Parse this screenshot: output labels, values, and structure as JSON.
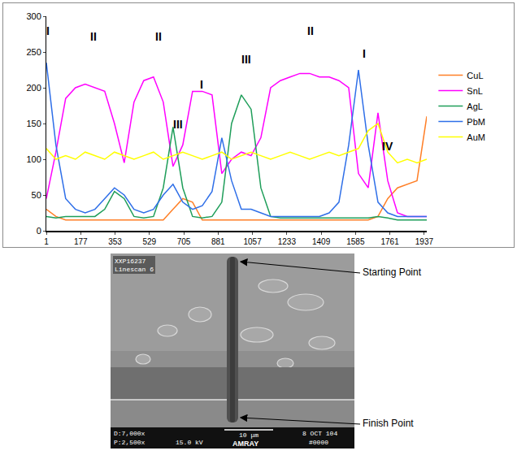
{
  "chart_data": {
    "type": "line",
    "x": [
      1,
      50,
      100,
      150,
      200,
      250,
      300,
      350,
      400,
      450,
      500,
      550,
      600,
      650,
      700,
      750,
      800,
      850,
      900,
      950,
      1000,
      1050,
      1100,
      1150,
      1200,
      1250,
      1300,
      1350,
      1400,
      1450,
      1500,
      1550,
      1600,
      1650,
      1700,
      1750,
      1800,
      1850,
      1900,
      1950
    ],
    "xlim": [
      1,
      1950
    ],
    "xticks": [
      1,
      177,
      353,
      529,
      705,
      881,
      1057,
      1233,
      1409,
      1585,
      1761,
      1937
    ],
    "ylim": [
      0,
      300
    ],
    "yticks": [
      0,
      50,
      100,
      150,
      200,
      250,
      300
    ],
    "grid": false,
    "legend": "right",
    "series": [
      {
        "name": "CuL",
        "color": "#ff7f27",
        "values": [
          30,
          20,
          15,
          15,
          15,
          15,
          15,
          15,
          15,
          15,
          15,
          15,
          15,
          30,
          45,
          40,
          15,
          15,
          15,
          15,
          15,
          15,
          15,
          15,
          15,
          15,
          15,
          15,
          15,
          15,
          15,
          15,
          15,
          15,
          20,
          45,
          60,
          65,
          70,
          160
        ]
      },
      {
        "name": "SnL",
        "color": "#ff00ff",
        "values": [
          45,
          110,
          185,
          200,
          205,
          200,
          195,
          150,
          95,
          180,
          210,
          215,
          180,
          90,
          120,
          195,
          195,
          190,
          80,
          100,
          110,
          105,
          130,
          200,
          210,
          215,
          220,
          220,
          215,
          215,
          210,
          200,
          80,
          60,
          165,
          70,
          25,
          20,
          20,
          20
        ]
      },
      {
        "name": "AgL",
        "color": "#1f9e5a",
        "values": [
          20,
          18,
          20,
          20,
          20,
          20,
          30,
          55,
          45,
          20,
          18,
          20,
          60,
          145,
          60,
          20,
          18,
          20,
          40,
          150,
          190,
          170,
          60,
          20,
          18,
          18,
          18,
          18,
          18,
          18,
          18,
          18,
          18,
          18,
          20,
          18,
          15,
          15,
          15,
          15
        ]
      },
      {
        "name": "PbM",
        "color": "#2f6fe8",
        "values": [
          235,
          120,
          45,
          30,
          25,
          30,
          45,
          60,
          50,
          30,
          25,
          30,
          50,
          65,
          40,
          30,
          35,
          55,
          130,
          70,
          30,
          30,
          25,
          20,
          20,
          20,
          20,
          20,
          20,
          25,
          40,
          120,
          225,
          120,
          40,
          25,
          20,
          20,
          20,
          20
        ]
      },
      {
        "name": "AuM",
        "color": "#ffff00",
        "values": [
          115,
          100,
          105,
          100,
          110,
          105,
          100,
          110,
          105,
          100,
          105,
          110,
          100,
          105,
          110,
          105,
          100,
          105,
          110,
          100,
          105,
          110,
          105,
          100,
          105,
          110,
          105,
          100,
          105,
          110,
          105,
          110,
          115,
          140,
          150,
          110,
          95,
          100,
          95,
          100
        ]
      }
    ],
    "annotations": [
      {
        "text": "I",
        "x": 10,
        "y": 280
      },
      {
        "text": "II",
        "x": 242,
        "y": 272
      },
      {
        "text": "II",
        "x": 575,
        "y": 272
      },
      {
        "text": "III",
        "x": 675,
        "y": 149
      },
      {
        "text": "I",
        "x": 796,
        "y": 204
      },
      {
        "text": "III",
        "x": 1025,
        "y": 240
      },
      {
        "text": "II",
        "x": 1354,
        "y": 280
      },
      {
        "text": "I",
        "x": 1629,
        "y": 248
      },
      {
        "text": "IV",
        "x": 1750,
        "y": 118
      }
    ]
  },
  "sem_image": {
    "header": [
      "XXP16237",
      "Linescan 6"
    ],
    "info_bar": {
      "magnifications": [
        "D:7,000x",
        "P:2,500x"
      ],
      "voltage": "15.0 kV",
      "scale": "10 μm",
      "brand": "AMRAY",
      "date": "8 OCT 104",
      "number": "#0000"
    },
    "callouts": {
      "start": "Starting Point",
      "finish": "Finish Point"
    }
  }
}
